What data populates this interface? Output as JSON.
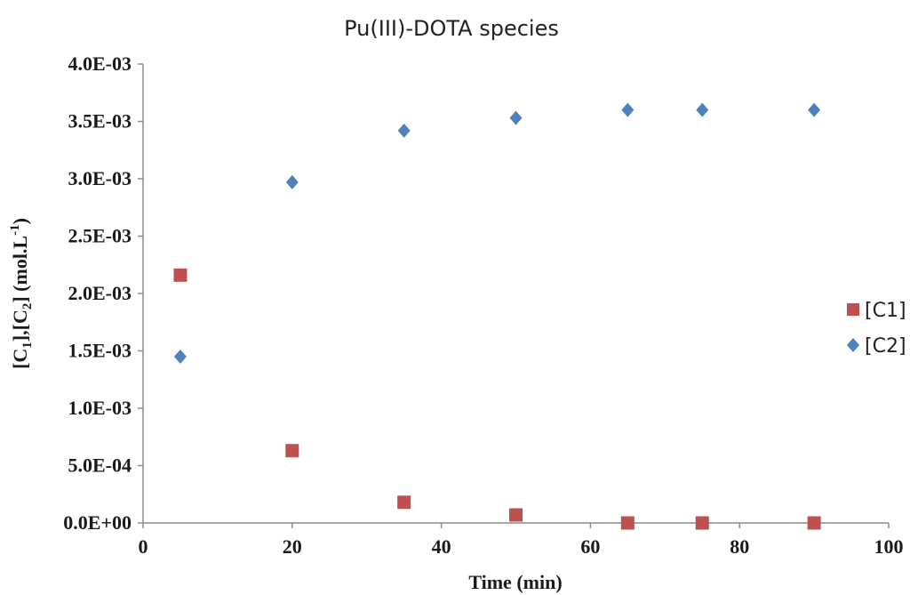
{
  "chart_data": {
    "type": "scatter",
    "title": "Pu(III)-DOTA species",
    "xlabel": "Time (min)",
    "ylabel": "[C1],[C2] (mol.L-1)",
    "ylabel_parts": {
      "p1": "[C",
      "s1": "1",
      "p2": "],[C",
      "s2": "2",
      "p3": "] (mol.L",
      "sup": "-1",
      "p4": ")"
    },
    "xlim": [
      0,
      100
    ],
    "ylim": [
      0,
      0.004
    ],
    "x_ticks": [
      0,
      20,
      40,
      60,
      80,
      100
    ],
    "x_tick_labels": [
      "0",
      "20",
      "40",
      "60",
      "80",
      "100"
    ],
    "y_ticks": [
      0,
      0.0005,
      0.001,
      0.0015,
      0.002,
      0.0025,
      0.003,
      0.0035,
      0.004
    ],
    "y_tick_labels": [
      "0.0E+00",
      "5.0E-04",
      "1.0E-03",
      "1.5E-03",
      "2.0E-03",
      "2.5E-03",
      "3.0E-03",
      "3.5E-03",
      "4.0E-03"
    ],
    "grid": false,
    "legend_position": "right",
    "series": [
      {
        "name": "[C1]",
        "marker": "square",
        "color": "#c0504d",
        "x": [
          5,
          20,
          35,
          50,
          65,
          75,
          90
        ],
        "y": [
          0.00216,
          0.00063,
          0.00018,
          7e-05,
          0.0,
          0.0,
          0.0
        ]
      },
      {
        "name": "[C2]",
        "marker": "diamond",
        "color": "#4f81bd",
        "x": [
          5,
          20,
          35,
          50,
          65,
          75,
          90
        ],
        "y": [
          0.00145,
          0.00297,
          0.00342,
          0.00353,
          0.0036,
          0.0036,
          0.0036
        ]
      }
    ]
  }
}
